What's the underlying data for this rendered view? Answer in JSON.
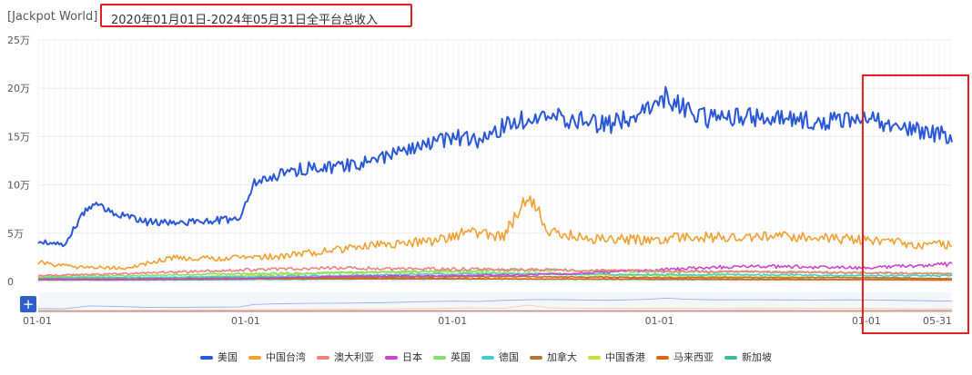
{
  "header": {
    "title_prefix": "[Jackpot World]",
    "title_range": "2020年01月01日-2024年05月31日全平台总收入"
  },
  "controls": {
    "plus_label": "+"
  },
  "colors": {
    "grid": "#ececec",
    "highlight": "#e02020",
    "navigator_bg": "#f4f6fa"
  },
  "chart_data": {
    "type": "line",
    "title": "2020年01月01日-2024年05月31日全平台总收入",
    "ylim": [
      0,
      250000
    ],
    "y_ticks": [
      {
        "value": 0,
        "label": "0"
      },
      {
        "value": 50000,
        "label": "5万"
      },
      {
        "value": 100000,
        "label": "10万"
      },
      {
        "value": 150000,
        "label": "15万"
      },
      {
        "value": 200000,
        "label": "20万"
      },
      {
        "value": 250000,
        "label": "25万"
      }
    ],
    "x_range": [
      "2020-01-01",
      "2024-05-31"
    ],
    "x_ticks": [
      {
        "date": "2020-01-01",
        "label": "01-01"
      },
      {
        "date": "2021-01-01",
        "label": "01-01"
      },
      {
        "date": "2022-01-01",
        "label": "01-01"
      },
      {
        "date": "2023-01-01",
        "label": "01-01"
      },
      {
        "date": "2024-01-01",
        "label": "01-01"
      },
      {
        "date": "2024-05-31",
        "label": "05-31"
      }
    ],
    "grid": true,
    "legend_position": "bottom",
    "highlight_range": [
      "2024-01-01",
      "2024-05-31"
    ],
    "series": [
      {
        "name": "美国",
        "color": "#2a57d6",
        "points": [
          [
            "2020-01-01",
            42000
          ],
          [
            "2020-02-15",
            38000
          ],
          [
            "2020-04-01",
            80000
          ],
          [
            "2020-05-15",
            72000
          ],
          [
            "2020-07-01",
            62000
          ],
          [
            "2020-09-01",
            60000
          ],
          [
            "2020-11-01",
            63000
          ],
          [
            "2020-12-20",
            65000
          ],
          [
            "2021-01-15",
            100000
          ],
          [
            "2021-03-01",
            112000
          ],
          [
            "2021-05-01",
            118000
          ],
          [
            "2021-07-01",
            120000
          ],
          [
            "2021-09-01",
            128000
          ],
          [
            "2021-11-01",
            140000
          ],
          [
            "2022-01-01",
            150000
          ],
          [
            "2022-02-15",
            145000
          ],
          [
            "2022-04-01",
            160000
          ],
          [
            "2022-06-01",
            172000
          ],
          [
            "2022-08-01",
            168000
          ],
          [
            "2022-10-01",
            162000
          ],
          [
            "2022-12-01",
            172000
          ],
          [
            "2023-01-15",
            192000
          ],
          [
            "2023-02-15",
            178000
          ],
          [
            "2023-04-01",
            168000
          ],
          [
            "2023-06-01",
            170000
          ],
          [
            "2023-08-01",
            168000
          ],
          [
            "2023-10-01",
            166000
          ],
          [
            "2023-12-01",
            168000
          ],
          [
            "2024-01-15",
            166000
          ],
          [
            "2024-03-01",
            160000
          ],
          [
            "2024-05-31",
            150000
          ]
        ]
      },
      {
        "name": "中国台湾",
        "color": "#f0a030",
        "points": [
          [
            "2020-01-01",
            20000
          ],
          [
            "2020-03-01",
            15000
          ],
          [
            "2020-06-01",
            14000
          ],
          [
            "2020-09-01",
            25000
          ],
          [
            "2020-12-01",
            24000
          ],
          [
            "2021-03-01",
            26000
          ],
          [
            "2021-06-01",
            32000
          ],
          [
            "2021-09-01",
            38000
          ],
          [
            "2021-12-01",
            42000
          ],
          [
            "2022-02-01",
            52000
          ],
          [
            "2022-04-01",
            46000
          ],
          [
            "2022-05-15",
            92000
          ],
          [
            "2022-06-20",
            52000
          ],
          [
            "2022-09-01",
            44000
          ],
          [
            "2022-12-01",
            43000
          ],
          [
            "2023-03-01",
            46000
          ],
          [
            "2023-06-01",
            46000
          ],
          [
            "2023-09-01",
            46000
          ],
          [
            "2023-12-01",
            44000
          ],
          [
            "2024-02-01",
            42000
          ],
          [
            "2024-04-01",
            38000
          ],
          [
            "2024-05-31",
            38000
          ]
        ]
      },
      {
        "name": "澳大利亚",
        "color": "#f08080",
        "points": [
          [
            "2020-01-01",
            6000
          ],
          [
            "2020-06-01",
            8000
          ],
          [
            "2021-01-01",
            12000
          ],
          [
            "2021-06-01",
            14000
          ],
          [
            "2022-01-01",
            13000
          ],
          [
            "2022-06-01",
            12000
          ],
          [
            "2023-01-01",
            11000
          ],
          [
            "2023-06-01",
            10000
          ],
          [
            "2024-01-01",
            9000
          ],
          [
            "2024-05-31",
            8000
          ]
        ]
      },
      {
        "name": "日本",
        "color": "#cc44cc",
        "points": [
          [
            "2020-01-01",
            2000
          ],
          [
            "2020-06-01",
            2000
          ],
          [
            "2021-01-01",
            3000
          ],
          [
            "2021-06-01",
            5000
          ],
          [
            "2022-01-01",
            6000
          ],
          [
            "2022-06-01",
            7000
          ],
          [
            "2023-01-01",
            12000
          ],
          [
            "2023-06-01",
            16000
          ],
          [
            "2024-01-01",
            14000
          ],
          [
            "2024-05-31",
            18000
          ]
        ]
      },
      {
        "name": "英国",
        "color": "#88dd66",
        "points": [
          [
            "2020-01-01",
            5000
          ],
          [
            "2020-06-01",
            6000
          ],
          [
            "2021-01-01",
            8000
          ],
          [
            "2021-06-01",
            9000
          ],
          [
            "2022-01-01",
            11000
          ],
          [
            "2022-06-01",
            12000
          ],
          [
            "2023-01-01",
            10000
          ],
          [
            "2023-06-01",
            10000
          ],
          [
            "2024-01-01",
            9000
          ],
          [
            "2024-05-31",
            8000
          ]
        ]
      },
      {
        "name": "德国",
        "color": "#44cccc",
        "points": [
          [
            "2020-01-01",
            4000
          ],
          [
            "2020-06-01",
            4000
          ],
          [
            "2021-01-01",
            5000
          ],
          [
            "2021-06-01",
            6000
          ],
          [
            "2022-01-01",
            8000
          ],
          [
            "2022-06-01",
            8000
          ],
          [
            "2023-01-01",
            7000
          ],
          [
            "2023-06-01",
            7000
          ],
          [
            "2024-01-01",
            6000
          ],
          [
            "2024-05-31",
            6000
          ]
        ]
      },
      {
        "name": "加拿大",
        "color": "#b87333",
        "points": [
          [
            "2020-01-01",
            3000
          ],
          [
            "2020-06-01",
            3000
          ],
          [
            "2021-01-01",
            4000
          ],
          [
            "2021-06-01",
            4000
          ],
          [
            "2022-01-01",
            5000
          ],
          [
            "2022-06-01",
            5000
          ],
          [
            "2023-01-01",
            4000
          ],
          [
            "2023-06-01",
            4000
          ],
          [
            "2024-01-01",
            4000
          ],
          [
            "2024-05-31",
            3000
          ]
        ]
      },
      {
        "name": "中国香港",
        "color": "#c8e040",
        "points": [
          [
            "2020-01-01",
            3000
          ],
          [
            "2020-06-01",
            3000
          ],
          [
            "2021-01-01",
            6000
          ],
          [
            "2021-06-01",
            9000
          ],
          [
            "2022-01-01",
            10000
          ],
          [
            "2022-06-01",
            8000
          ],
          [
            "2023-01-01",
            6000
          ],
          [
            "2023-06-01",
            5000
          ],
          [
            "2024-01-01",
            4000
          ],
          [
            "2024-05-31",
            3000
          ]
        ]
      },
      {
        "name": "马来西亚",
        "color": "#e06010",
        "points": [
          [
            "2020-01-01",
            2000
          ],
          [
            "2020-06-01",
            2000
          ],
          [
            "2021-01-01",
            3000
          ],
          [
            "2021-06-01",
            3000
          ],
          [
            "2022-01-01",
            3000
          ],
          [
            "2022-06-01",
            2500
          ],
          [
            "2023-01-01",
            2500
          ],
          [
            "2023-06-01",
            2000
          ],
          [
            "2024-01-01",
            2000
          ],
          [
            "2024-05-31",
            1500
          ]
        ]
      },
      {
        "name": "新加坡",
        "color": "#40b8a0",
        "points": [
          [
            "2020-01-01",
            1500
          ],
          [
            "2020-06-01",
            1500
          ],
          [
            "2021-01-01",
            2000
          ],
          [
            "2021-06-01",
            2500
          ],
          [
            "2022-01-01",
            2500
          ],
          [
            "2022-06-01",
            2500
          ],
          [
            "2023-01-01",
            2000
          ],
          [
            "2023-06-01",
            2000
          ],
          [
            "2024-01-01",
            2000
          ],
          [
            "2024-05-31",
            1800
          ]
        ]
      }
    ]
  }
}
